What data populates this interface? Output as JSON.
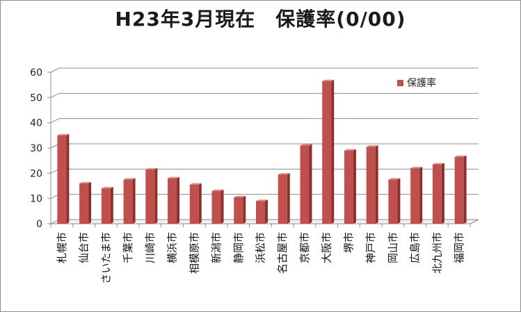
{
  "chart_data": {
    "type": "bar",
    "title": "H23年3月現在　保護率(0/00)",
    "categories": [
      "札幌市",
      "仙台市",
      "さいたま市",
      "千葉市",
      "川崎市",
      "横浜市",
      "相模原市",
      "新潟市",
      "静岡市",
      "浜松市",
      "名古屋市",
      "京都市",
      "大阪市",
      "堺市",
      "神戸市",
      "岡山市",
      "広島市",
      "北九州市",
      "福岡市"
    ],
    "series": [
      {
        "name": "保護率",
        "values": [
          35,
          16,
          14,
          17.5,
          21.5,
          18,
          15.5,
          13,
          10.5,
          9,
          19.5,
          31,
          56.5,
          29,
          30.5,
          17.5,
          22,
          23.5,
          26.5
        ]
      }
    ],
    "ylim": [
      0,
      60
    ],
    "yticks": [
      0,
      10,
      20,
      30,
      40,
      50,
      60
    ],
    "grid": true,
    "legend_position": "top-right",
    "colors": {
      "bar_front": "#c0504d",
      "bar_side": "#8f2f2c",
      "bar_top": "#d98b89",
      "grid": "#8c8c8c"
    }
  }
}
